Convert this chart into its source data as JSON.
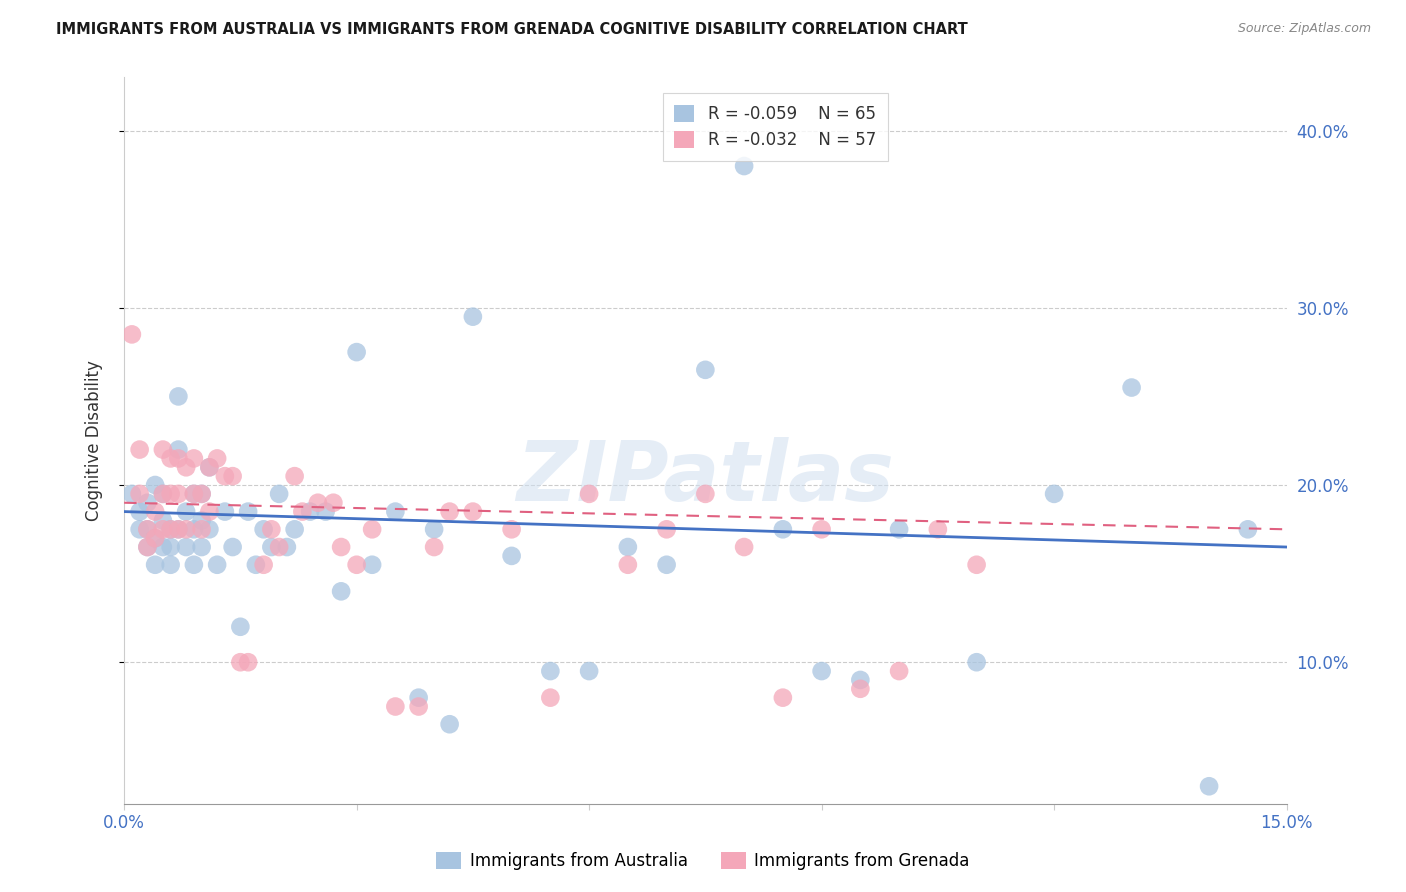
{
  "title": "IMMIGRANTS FROM AUSTRALIA VS IMMIGRANTS FROM GRENADA COGNITIVE DISABILITY CORRELATION CHART",
  "source": "Source: ZipAtlas.com",
  "ylabel": "Cognitive Disability",
  "y_ticks": [
    0.1,
    0.2,
    0.3,
    0.4
  ],
  "y_tick_labels": [
    "10.0%",
    "20.0%",
    "30.0%",
    "40.0%"
  ],
  "xmin": 0.0,
  "xmax": 0.15,
  "ymin": 0.02,
  "ymax": 0.43,
  "legend_R1": "R = -0.059",
  "legend_N1": "N = 65",
  "legend_R2": "R = -0.032",
  "legend_N2": "N = 57",
  "color_australia": "#a8c4e0",
  "color_grenada": "#f4a7b9",
  "line_color_australia": "#4472c4",
  "line_color_grenada": "#e06080",
  "watermark": "ZIPatlas",
  "australia_x": [
    0.001,
    0.002,
    0.002,
    0.003,
    0.003,
    0.003,
    0.004,
    0.004,
    0.004,
    0.005,
    0.005,
    0.005,
    0.006,
    0.006,
    0.006,
    0.007,
    0.007,
    0.007,
    0.008,
    0.008,
    0.009,
    0.009,
    0.009,
    0.01,
    0.01,
    0.01,
    0.011,
    0.011,
    0.012,
    0.013,
    0.014,
    0.015,
    0.016,
    0.017,
    0.018,
    0.019,
    0.02,
    0.021,
    0.022,
    0.024,
    0.026,
    0.028,
    0.03,
    0.032,
    0.035,
    0.038,
    0.04,
    0.042,
    0.045,
    0.05,
    0.055,
    0.06,
    0.065,
    0.07,
    0.075,
    0.08,
    0.085,
    0.09,
    0.095,
    0.1,
    0.11,
    0.12,
    0.13,
    0.14,
    0.145
  ],
  "australia_y": [
    0.195,
    0.185,
    0.175,
    0.19,
    0.175,
    0.165,
    0.2,
    0.17,
    0.155,
    0.195,
    0.18,
    0.165,
    0.175,
    0.165,
    0.155,
    0.25,
    0.22,
    0.175,
    0.185,
    0.165,
    0.195,
    0.175,
    0.155,
    0.195,
    0.18,
    0.165,
    0.21,
    0.175,
    0.155,
    0.185,
    0.165,
    0.12,
    0.185,
    0.155,
    0.175,
    0.165,
    0.195,
    0.165,
    0.175,
    0.185,
    0.185,
    0.14,
    0.275,
    0.155,
    0.185,
    0.08,
    0.175,
    0.065,
    0.295,
    0.16,
    0.095,
    0.095,
    0.165,
    0.155,
    0.265,
    0.38,
    0.175,
    0.095,
    0.09,
    0.175,
    0.1,
    0.195,
    0.255,
    0.03,
    0.175
  ],
  "grenada_x": [
    0.001,
    0.002,
    0.002,
    0.003,
    0.003,
    0.004,
    0.004,
    0.005,
    0.005,
    0.005,
    0.006,
    0.006,
    0.006,
    0.007,
    0.007,
    0.007,
    0.008,
    0.008,
    0.009,
    0.009,
    0.01,
    0.01,
    0.011,
    0.011,
    0.012,
    0.013,
    0.014,
    0.015,
    0.016,
    0.018,
    0.019,
    0.02,
    0.022,
    0.023,
    0.025,
    0.027,
    0.028,
    0.03,
    0.032,
    0.035,
    0.038,
    0.04,
    0.042,
    0.045,
    0.05,
    0.055,
    0.06,
    0.065,
    0.07,
    0.075,
    0.08,
    0.085,
    0.09,
    0.095,
    0.1,
    0.105,
    0.11
  ],
  "grenada_y": [
    0.285,
    0.22,
    0.195,
    0.175,
    0.165,
    0.185,
    0.17,
    0.22,
    0.195,
    0.175,
    0.215,
    0.195,
    0.175,
    0.215,
    0.195,
    0.175,
    0.21,
    0.175,
    0.215,
    0.195,
    0.195,
    0.175,
    0.21,
    0.185,
    0.215,
    0.205,
    0.205,
    0.1,
    0.1,
    0.155,
    0.175,
    0.165,
    0.205,
    0.185,
    0.19,
    0.19,
    0.165,
    0.155,
    0.175,
    0.075,
    0.075,
    0.165,
    0.185,
    0.185,
    0.175,
    0.08,
    0.195,
    0.155,
    0.175,
    0.195,
    0.165,
    0.08,
    0.175,
    0.085,
    0.095,
    0.175,
    0.155
  ]
}
